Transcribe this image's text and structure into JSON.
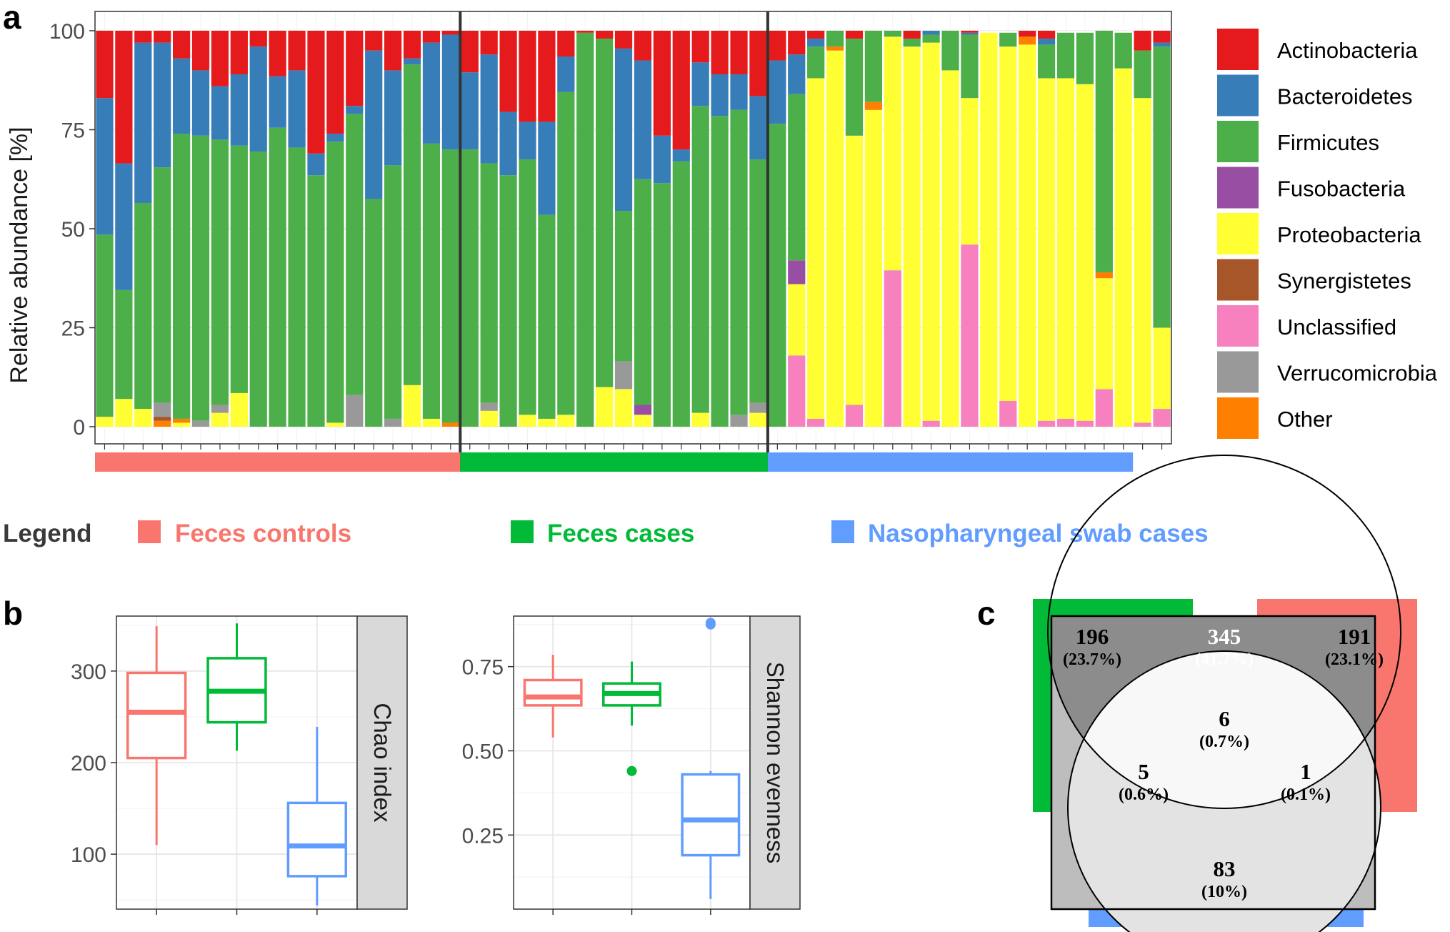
{
  "panel_labels": {
    "a": "a",
    "b": "b",
    "c": "c"
  },
  "colors": {
    "Actinobacteria": "#E41A1C",
    "Bacteroidetes": "#377EB8",
    "Firmicutes": "#4DAF4A",
    "Fusobacteria": "#984EA3",
    "Proteobacteria": "#FFFF33",
    "Synergistetes": "#A65628",
    "Unclassified": "#F781BF",
    "Verrucomicrobia": "#999999",
    "Other": "#FF7F00",
    "feces_controls": "#F8766D",
    "feces_cases": "#00BA38",
    "naso_cases": "#619CFF"
  },
  "group_legend": {
    "title": "Legend",
    "items": [
      {
        "label": "Feces controls",
        "color": "#F8766D"
      },
      {
        "label": "Feces cases",
        "color": "#00BA38"
      },
      {
        "label": "Nasopharyngeal swab cases",
        "color": "#619CFF"
      }
    ]
  },
  "venn": {
    "regions": [
      {
        "count": "196",
        "pct": "(23.7%)"
      },
      {
        "count": "345",
        "pct": "(41.7%)"
      },
      {
        "count": "191",
        "pct": "(23.1%)"
      },
      {
        "count": "6",
        "pct": "(0.7%)"
      },
      {
        "count": "5",
        "pct": "(0.6%)"
      },
      {
        "count": "1",
        "pct": "(0.1%)"
      },
      {
        "count": "83",
        "pct": "(10%)"
      }
    ]
  },
  "chart_data": [
    {
      "type": "bar",
      "stacked": true,
      "ylabel": "Relative abundance [%]",
      "ylim": [
        0,
        100
      ],
      "yticks": [
        0,
        25,
        50,
        75,
        100
      ],
      "grid": true,
      "legend_position": "right",
      "groups": [
        {
          "name": "Feces controls",
          "n_samples": 19
        },
        {
          "name": "Feces cases",
          "n_samples": 16
        },
        {
          "name": "Nasopharyngeal swab cases",
          "n_samples": 19
        }
      ],
      "series_order": [
        "Unclassified",
        "Proteobacteria",
        "Other",
        "Synergistetes",
        "Verrucomicrobia",
        "Fusobacteria",
        "Firmicutes",
        "Bacteroidetes",
        "Actinobacteria"
      ],
      "legend_entries": [
        "Actinobacteria",
        "Bacteroidetes",
        "Firmicutes",
        "Fusobacteria",
        "Proteobacteria",
        "Synergistetes",
        "Unclassified",
        "Verrucomicrobia",
        "Other"
      ],
      "samples": [
        {
          "Proteobacteria": 2.5,
          "Firmicutes": 46,
          "Bacteroidetes": 34.5,
          "Actinobacteria": 17
        },
        {
          "Proteobacteria": 7,
          "Firmicutes": 27.5,
          "Bacteroidetes": 32,
          "Actinobacteria": 33.5
        },
        {
          "Proteobacteria": 4.5,
          "Firmicutes": 52,
          "Bacteroidetes": 40.5,
          "Actinobacteria": 3
        },
        {
          "Verrucomicrobia": 3.5,
          "Synergistetes": 1,
          "Other": 1.5,
          "Firmicutes": 59.5,
          "Bacteroidetes": 31.5,
          "Actinobacteria": 3
        },
        {
          "Proteobacteria": 1,
          "Other": 1,
          "Firmicutes": 72,
          "Bacteroidetes": 19,
          "Actinobacteria": 7
        },
        {
          "Verrucomicrobia": 1.5,
          "Firmicutes": 72,
          "Bacteroidetes": 16.5,
          "Actinobacteria": 10
        },
        {
          "Verrucomicrobia": 2,
          "Proteobacteria": 3.5,
          "Firmicutes": 67,
          "Bacteroidetes": 13.5,
          "Actinobacteria": 14
        },
        {
          "Proteobacteria": 8.5,
          "Firmicutes": 62.5,
          "Bacteroidetes": 18,
          "Actinobacteria": 11
        },
        {
          "Firmicutes": 69.5,
          "Bacteroidetes": 26.5,
          "Actinobacteria": 4
        },
        {
          "Firmicutes": 75.5,
          "Bacteroidetes": 13,
          "Actinobacteria": 11.5
        },
        {
          "Firmicutes": 70.5,
          "Bacteroidetes": 19.5,
          "Actinobacteria": 10
        },
        {
          "Firmicutes": 63.5,
          "Bacteroidetes": 5.5,
          "Actinobacteria": 31
        },
        {
          "Proteobacteria": 1,
          "Firmicutes": 71,
          "Bacteroidetes": 2,
          "Actinobacteria": 26
        },
        {
          "Verrucomicrobia": 8,
          "Firmicutes": 71,
          "Bacteroidetes": 2,
          "Actinobacteria": 19
        },
        {
          "Firmicutes": 57.5,
          "Bacteroidetes": 37.5,
          "Actinobacteria": 5
        },
        {
          "Verrucomicrobia": 2,
          "Firmicutes": 64,
          "Bacteroidetes": 24,
          "Actinobacteria": 10
        },
        {
          "Proteobacteria": 10.5,
          "Firmicutes": 81,
          "Bacteroidetes": 1.5,
          "Actinobacteria": 7
        },
        {
          "Proteobacteria": 2,
          "Firmicutes": 69.5,
          "Bacteroidetes": 25.5,
          "Actinobacteria": 3
        },
        {
          "Other": 1,
          "Firmicutes": 69,
          "Bacteroidetes": 29,
          "Actinobacteria": 1
        },
        {
          "Firmicutes": 70,
          "Bacteroidetes": 19.5,
          "Actinobacteria": 10.5
        },
        {
          "Verrucomicrobia": 2,
          "Proteobacteria": 4,
          "Firmicutes": 60.5,
          "Bacteroidetes": 27.5,
          "Actinobacteria": 6
        },
        {
          "Firmicutes": 63.5,
          "Bacteroidetes": 16,
          "Actinobacteria": 20.5
        },
        {
          "Proteobacteria": 3,
          "Firmicutes": 64.5,
          "Bacteroidetes": 9.5,
          "Actinobacteria": 23
        },
        {
          "Proteobacteria": 2,
          "Firmicutes": 51.5,
          "Bacteroidetes": 23.5,
          "Actinobacteria": 23
        },
        {
          "Proteobacteria": 3,
          "Firmicutes": 81.5,
          "Bacteroidetes": 9,
          "Actinobacteria": 6.5
        },
        {
          "Firmicutes": 99.5,
          "Actinobacteria": 0.5
        },
        {
          "Proteobacteria": 10,
          "Firmicutes": 88,
          "Actinobacteria": 2
        },
        {
          "Verrucomicrobia": 7,
          "Proteobacteria": 9.5,
          "Firmicutes": 38,
          "Bacteroidetes": 41,
          "Actinobacteria": 4.5
        },
        {
          "Fusobacteria": 2.5,
          "Proteobacteria": 3,
          "Firmicutes": 57,
          "Bacteroidetes": 30,
          "Actinobacteria": 7.5
        },
        {
          "Firmicutes": 61.5,
          "Bacteroidetes": 12,
          "Actinobacteria": 26.5
        },
        {
          "Firmicutes": 67,
          "Bacteroidetes": 3,
          "Actinobacteria": 30
        },
        {
          "Proteobacteria": 3.5,
          "Firmicutes": 77.5,
          "Bacteroidetes": 11,
          "Actinobacteria": 8
        },
        {
          "Firmicutes": 78.5,
          "Bacteroidetes": 10.5,
          "Actinobacteria": 11
        },
        {
          "Verrucomicrobia": 3,
          "Firmicutes": 77,
          "Bacteroidetes": 9,
          "Actinobacteria": 11
        },
        {
          "Verrucomicrobia": 2.5,
          "Proteobacteria": 3.5,
          "Firmicutes": 61.5,
          "Bacteroidetes": 16,
          "Actinobacteria": 16.5
        },
        {
          "Firmicutes": 76.5,
          "Bacteroidetes": 16,
          "Actinobacteria": 7.5
        },
        {
          "Unclassified": 18,
          "Proteobacteria": 18,
          "Fusobacteria": 6,
          "Firmicutes": 42,
          "Bacteroidetes": 10,
          "Actinobacteria": 6
        },
        {
          "Unclassified": 2,
          "Proteobacteria": 86,
          "Firmicutes": 8,
          "Bacteroidetes": 2,
          "Actinobacteria": 2
        },
        {
          "Proteobacteria": 95,
          "Other": 1,
          "Firmicutes": 4
        },
        {
          "Unclassified": 5.5,
          "Proteobacteria": 68,
          "Firmicutes": 24.5,
          "Actinobacteria": 2
        },
        {
          "Proteobacteria": 80,
          "Other": 2,
          "Firmicutes": 18
        },
        {
          "Unclassified": 39.5,
          "Proteobacteria": 59,
          "Firmicutes": 1.5
        },
        {
          "Proteobacteria": 96,
          "Firmicutes": 2,
          "Actinobacteria": 2
        },
        {
          "Unclassified": 1.5,
          "Proteobacteria": 95.5,
          "Firmicutes": 2,
          "Bacteroidetes": 1
        },
        {
          "Proteobacteria": 90,
          "Firmicutes": 10
        },
        {
          "Unclassified": 46,
          "Proteobacteria": 37,
          "Firmicutes": 16,
          "Bacteroidetes": 0.5,
          "Actinobacteria": 0.5
        },
        {
          "Proteobacteria": 99.5
        },
        {
          "Unclassified": 6.5,
          "Proteobacteria": 89.5,
          "Firmicutes": 3.5
        },
        {
          "Proteobacteria": 96.5,
          "Other": 2,
          "Actinobacteria": 1.5
        },
        {
          "Unclassified": 1.5,
          "Proteobacteria": 86.5,
          "Firmicutes": 8.5,
          "Bacteroidetes": 1.5,
          "Actinobacteria": 2
        },
        {
          "Unclassified": 2,
          "Proteobacteria": 86,
          "Firmicutes": 11.5
        },
        {
          "Unclassified": 1.5,
          "Proteobacteria": 85,
          "Firmicutes": 13
        },
        {
          "Unclassified": 9.5,
          "Proteobacteria": 28,
          "Other": 1.5,
          "Firmicutes": 61
        },
        {
          "Proteobacteria": 90.5,
          "Firmicutes": 9
        },
        {
          "Unclassified": 1,
          "Proteobacteria": 82,
          "Firmicutes": 12,
          "Actinobacteria": 5
        },
        {
          "Unclassified": 4.5,
          "Proteobacteria": 20.5,
          "Firmicutes": 71,
          "Bacteroidetes": 1,
          "Actinobacteria": 3
        }
      ]
    },
    {
      "type": "boxplot",
      "facet_label": "Chao index",
      "ylim": [
        40,
        360
      ],
      "yticks": [
        100,
        200,
        300
      ],
      "grid": true,
      "boxes": [
        {
          "group": "Feces controls",
          "color": "#F8766D",
          "min": 110,
          "q1": 205,
          "median": 255,
          "q3": 298,
          "max": 349,
          "outliers": []
        },
        {
          "group": "Feces cases",
          "color": "#00BA38",
          "min": 213,
          "q1": 244,
          "median": 278,
          "q3": 314,
          "max": 352,
          "outliers": []
        },
        {
          "group": "Nasopharyngeal swab cases",
          "color": "#619CFF",
          "min": 44,
          "q1": 76,
          "median": 109,
          "q3": 156,
          "max": 239,
          "outliers": []
        }
      ]
    },
    {
      "type": "boxplot",
      "facet_label": "Shannon evenness",
      "ylim": [
        0.03,
        0.9
      ],
      "yticks": [
        0.25,
        0.5,
        0.75
      ],
      "grid": true,
      "boxes": [
        {
          "group": "Feces controls",
          "color": "#F8766D",
          "min": 0.54,
          "q1": 0.635,
          "median": 0.66,
          "q3": 0.71,
          "max": 0.785,
          "outliers": []
        },
        {
          "group": "Feces cases",
          "color": "#00BA38",
          "min": 0.575,
          "q1": 0.635,
          "median": 0.67,
          "q3": 0.7,
          "max": 0.765,
          "outliers": [
            0.44
          ]
        },
        {
          "group": "Nasopharyngeal swab cases",
          "color": "#619CFF",
          "min": 0.06,
          "q1": 0.19,
          "median": 0.295,
          "q3": 0.43,
          "max": 0.44,
          "outliers": [
            0.875,
            0.88
          ]
        }
      ]
    }
  ]
}
